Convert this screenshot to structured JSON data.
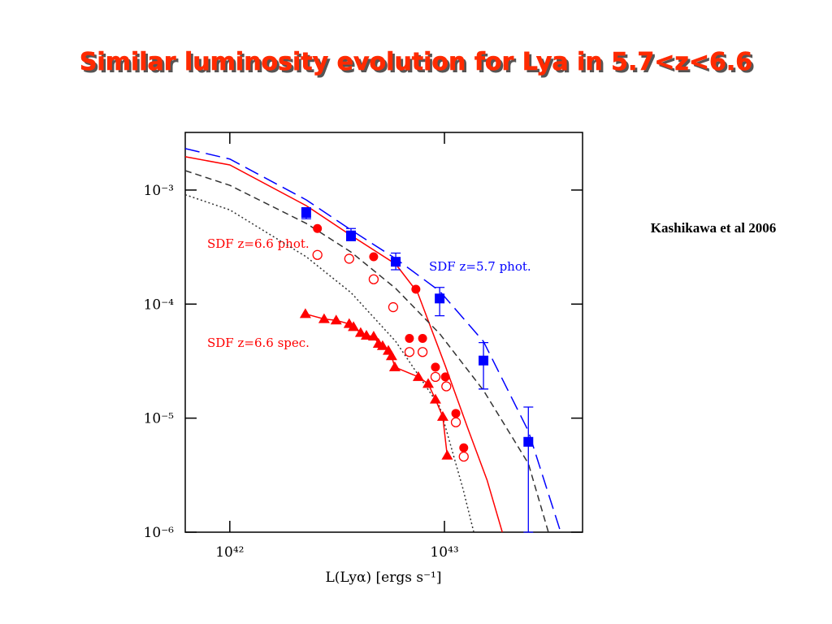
{
  "title": "Similar luminosity evolution for Lya in 5.7<z<6.6",
  "citation": "Kashikawa et al 2006",
  "chart_data": {
    "type": "scatter",
    "xlabel": "L(Lyα) [ergs s⁻¹]",
    "xlog": true,
    "ylog": true,
    "xlim": [
      6.2e+41,
      4.4e+43
    ],
    "ylim": [
      1e-06,
      0.0032
    ],
    "xticks": [
      {
        "value": 1e+42,
        "label": "10⁴²"
      },
      {
        "value": 1e+43,
        "label": "10⁴³"
      }
    ],
    "yticks": [
      {
        "value": 1e-06,
        "label": "10⁻⁶"
      },
      {
        "value": 1e-05,
        "label": "10⁻⁵"
      },
      {
        "value": 0.0001,
        "label": "10⁻⁴"
      },
      {
        "value": 0.001,
        "label": "10⁻³"
      }
    ],
    "annotations": [
      "SDF z=6.6 phot.",
      "SDF z=6.6 spec.",
      "SDF z=5.7 phot."
    ],
    "series": [
      {
        "color": "#0000ff",
        "marker": "none",
        "dash": "long",
        "x": [
          6.2e+41,
          1e+42,
          2.27e+42,
          3.67e+42,
          5.93e+42,
          9.5e+42,
          1.52e+43,
          2.46e+43,
          3.48e+43
        ],
        "values": [
          0.00231,
          0.00187,
          0.00082,
          0.000447,
          0.00025,
          0.00013,
          4.7e-05,
          7.7e-06,
          1e-06
        ]
      },
      {
        "color": "#ff0000",
        "marker": "none",
        "dash": "solid",
        "x": [
          6.2e+41,
          1e+42,
          2.27e+42,
          3.67e+42,
          5.93e+42,
          7.5e+42,
          1.01e+43,
          1.28e+43,
          1.58e+43,
          1.86e+43
        ],
        "values": [
          0.00196,
          0.00166,
          0.00073,
          0.0004,
          0.000224,
          0.000126,
          2.86e-05,
          8.3e-06,
          2.86e-06,
          1e-06
        ]
      },
      {
        "color": "#333333",
        "marker": "none",
        "dash": "short",
        "x": [
          6.2e+41,
          1e+42,
          2.27e+42,
          3.67e+42,
          5.93e+42,
          9.5e+42,
          1.52e+43,
          2.46e+43,
          3.05e+43
        ],
        "values": [
          0.00148,
          0.0011,
          0.00051,
          0.000286,
          0.000137,
          5.5e-05,
          1.75e-05,
          4e-06,
          1e-06
        ]
      },
      {
        "color": "#333333",
        "marker": "none",
        "dash": "dot",
        "x": [
          6.2e+41,
          1e+42,
          2.27e+42,
          3.67e+42,
          5.93e+42,
          9.5e+42,
          1.22e+43,
          1.37e+43
        ],
        "values": [
          0.00091,
          0.00067,
          0.00026,
          0.000126,
          4.7e-05,
          1.26e-05,
          2.4e-06,
          1e-06
        ]
      },
      {
        "color": "#0000ff",
        "marker": "square",
        "dash": "none",
        "x": [
          2.27e+42,
          3.67e+42,
          5.93e+42,
          9.5e+42,
          1.52e+43,
          2.46e+43
        ],
        "values": [
          0.00063,
          0.0004,
          0.000235,
          0.000112,
          3.2e-05,
          6.2e-06
        ],
        "lower": [
          0.00056,
          0.00036,
          0.0002,
          7.9e-05,
          1.8e-05,
          1e-06
        ],
        "upper": [
          0.0007,
          0.00046,
          0.00028,
          0.00014,
          4.6e-05,
          1.25e-05
        ]
      },
      {
        "color": "#ff0000",
        "marker": "circle",
        "dash": "none",
        "x": [
          2.56e+42,
          4.68e+42,
          7.36e+42,
          6.87e+42,
          7.91e+42,
          9.08e+42,
          1.01e+43,
          1.13e+43,
          1.23e+43
        ],
        "values": [
          0.00046,
          0.00026,
          0.000135,
          5e-05,
          5e-05,
          2.8e-05,
          2.3e-05,
          1.1e-05,
          5.5e-06
        ]
      },
      {
        "color": "#ff0000",
        "marker": "circle-open",
        "dash": "none",
        "x": [
          2.56e+42,
          3.6e+42,
          4.68e+42,
          5.77e+42,
          6.87e+42,
          7.91e+42,
          9.08e+42,
          1.02e+43,
          1.13e+43,
          1.23e+43
        ],
        "values": [
          0.00027,
          0.00025,
          0.000165,
          9.4e-05,
          3.8e-05,
          3.8e-05,
          2.3e-05,
          1.9e-05,
          9.2e-06,
          4.6e-06
        ]
      },
      {
        "color": "#ff0000",
        "marker": "triangle",
        "dash": "solid",
        "x": [
          2.25e+42,
          2.75e+42,
          3.13e+42,
          3.6e+42,
          3.77e+42,
          4.07e+42,
          4.33e+42,
          4.68e+42,
          4.93e+42,
          5.15e+42,
          5.48e+42,
          5.67e+42,
          5.87e+42,
          7.56e+42,
          8.4e+42,
          9.08e+42,
          9.82e+42,
          1.03e+43
        ],
        "values": [
          8.2e-05,
          7.4e-05,
          7.2e-05,
          6.7e-05,
          6.3e-05,
          5.6e-05,
          5.3e-05,
          5.2e-05,
          4.5e-05,
          4.3e-05,
          3.9e-05,
          3.5e-05,
          2.8e-05,
          2.3e-05,
          2e-05,
          1.46e-05,
          1.03e-05,
          4.7e-06
        ]
      }
    ]
  }
}
